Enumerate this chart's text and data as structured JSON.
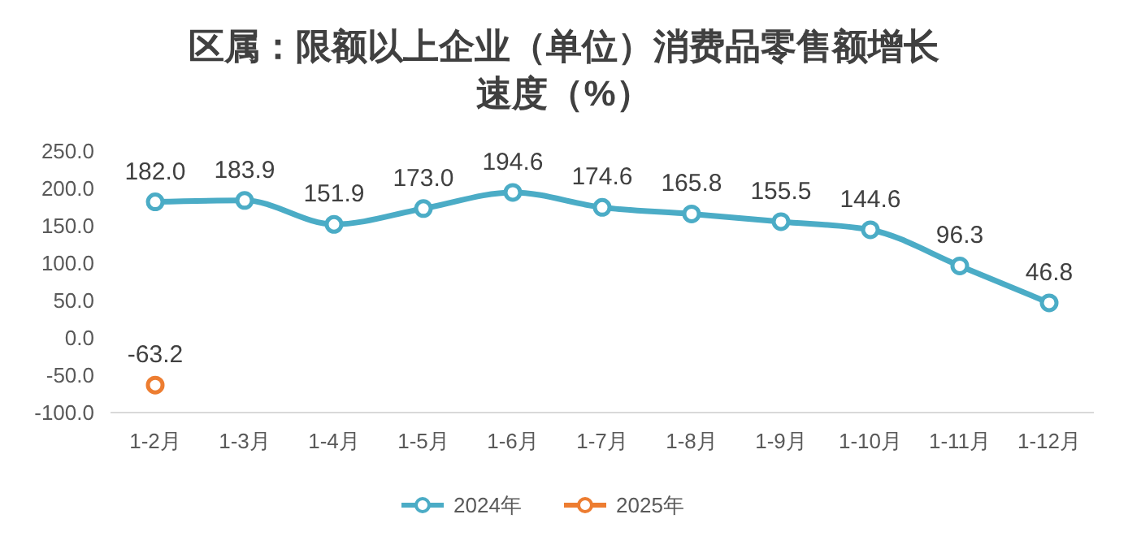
{
  "chart_data": {
    "type": "line",
    "title": "区属：限额以上企业（单位）消费品零售额增长速度（%）",
    "categories": [
      "1-2月",
      "1-3月",
      "1-4月",
      "1-5月",
      "1-6月",
      "1-7月",
      "1-8月",
      "1-9月",
      "1-10月",
      "1-11月",
      "1-12月"
    ],
    "series": [
      {
        "name": "2024年",
        "color": "#4bacc6",
        "values": [
          182.0,
          183.9,
          151.9,
          173.0,
          194.6,
          174.6,
          165.8,
          155.5,
          144.6,
          96.3,
          46.8
        ],
        "value_labels": [
          "182.0",
          "183.9",
          "151.9",
          "173.0",
          "194.6",
          "174.6",
          "165.8",
          "155.5",
          "144.6",
          "96.3",
          "46.8"
        ]
      },
      {
        "name": "2025年",
        "color": "#ed7d31",
        "values": [
          -63.2,
          null,
          null,
          null,
          null,
          null,
          null,
          null,
          null,
          null,
          null
        ],
        "value_labels": [
          "-63.2",
          null,
          null,
          null,
          null,
          null,
          null,
          null,
          null,
          null,
          null
        ]
      }
    ],
    "ylim": [
      -100,
      250
    ],
    "yticks": [
      {
        "value": -100,
        "label": "-100.0"
      },
      {
        "value": -50,
        "label": "-50.0"
      },
      {
        "value": 0,
        "label": "0.0"
      },
      {
        "value": 50,
        "label": "50.0"
      },
      {
        "value": 100,
        "label": "100.0"
      },
      {
        "value": 150,
        "label": "150.0"
      },
      {
        "value": 200,
        "label": "200.0"
      },
      {
        "value": 250,
        "label": "250.0"
      }
    ],
    "marker": "circle",
    "line_style": "solid",
    "grid": false,
    "legend": "bottom"
  }
}
